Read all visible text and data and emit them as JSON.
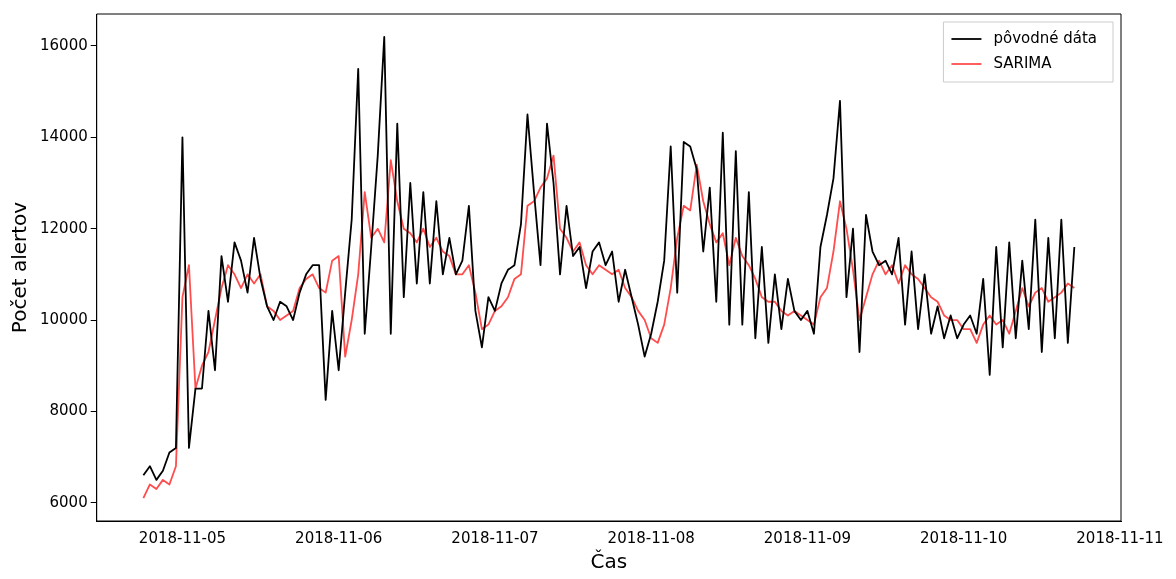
{
  "chart_data": {
    "type": "line",
    "xlabel": "Čas",
    "ylabel": "Počet alertov",
    "legend": "top right",
    "grid": false,
    "marker": "none",
    "line_style": "solid",
    "xlim": [
      "2018-11-04T10:50",
      "2018-11-11T00:10"
    ],
    "xticks": [
      "2018-11-05",
      "2018-11-06",
      "2018-11-07",
      "2018-11-08",
      "2018-11-09",
      "2018-11-10",
      "2018-11-11"
    ],
    "ylim": [
      5600,
      16700
    ],
    "yticks": [
      6000,
      8000,
      10000,
      12000,
      14000,
      16000
    ],
    "x": [
      "2018-11-04T18:00",
      "2018-11-04T19:00",
      "2018-11-04T20:00",
      "2018-11-04T21:00",
      "2018-11-04T22:00",
      "2018-11-04T23:00",
      "2018-11-05T00:00",
      "2018-11-05T01:00",
      "2018-11-05T02:00",
      "2018-11-05T03:00",
      "2018-11-05T04:00",
      "2018-11-05T05:00",
      "2018-11-05T06:00",
      "2018-11-05T07:00",
      "2018-11-05T08:00",
      "2018-11-05T09:00",
      "2018-11-05T10:00",
      "2018-11-05T11:00",
      "2018-11-05T12:00",
      "2018-11-05T13:00",
      "2018-11-05T14:00",
      "2018-11-05T15:00",
      "2018-11-05T16:00",
      "2018-11-05T17:00",
      "2018-11-05T18:00",
      "2018-11-05T19:00",
      "2018-11-05T20:00",
      "2018-11-05T21:00",
      "2018-11-05T22:00",
      "2018-11-05T23:00",
      "2018-11-06T00:00",
      "2018-11-06T01:00",
      "2018-11-06T02:00",
      "2018-11-06T03:00",
      "2018-11-06T04:00",
      "2018-11-06T05:00",
      "2018-11-06T06:00",
      "2018-11-06T07:00",
      "2018-11-06T08:00",
      "2018-11-06T09:00",
      "2018-11-06T10:00",
      "2018-11-06T11:00",
      "2018-11-06T12:00",
      "2018-11-06T13:00",
      "2018-11-06T14:00",
      "2018-11-06T15:00",
      "2018-11-06T16:00",
      "2018-11-06T17:00",
      "2018-11-06T18:00",
      "2018-11-06T19:00",
      "2018-11-06T20:00",
      "2018-11-06T21:00",
      "2018-11-06T22:00",
      "2018-11-06T23:00",
      "2018-11-07T00:00",
      "2018-11-07T01:00",
      "2018-11-07T02:00",
      "2018-11-07T03:00",
      "2018-11-07T04:00",
      "2018-11-07T05:00",
      "2018-11-07T06:00",
      "2018-11-07T07:00",
      "2018-11-07T08:00",
      "2018-11-07T09:00",
      "2018-11-07T10:00",
      "2018-11-07T11:00",
      "2018-11-07T12:00",
      "2018-11-07T13:00",
      "2018-11-07T14:00",
      "2018-11-07T15:00",
      "2018-11-07T16:00",
      "2018-11-07T17:00",
      "2018-11-07T18:00",
      "2018-11-07T19:00",
      "2018-11-07T20:00",
      "2018-11-07T21:00",
      "2018-11-07T22:00",
      "2018-11-07T23:00",
      "2018-11-08T00:00",
      "2018-11-08T01:00",
      "2018-11-08T02:00",
      "2018-11-08T03:00",
      "2018-11-08T04:00",
      "2018-11-08T05:00",
      "2018-11-08T06:00",
      "2018-11-08T07:00",
      "2018-11-08T08:00",
      "2018-11-08T09:00",
      "2018-11-08T10:00",
      "2018-11-08T11:00",
      "2018-11-08T12:00",
      "2018-11-08T13:00",
      "2018-11-08T14:00",
      "2018-11-08T15:00",
      "2018-11-08T16:00",
      "2018-11-08T17:00",
      "2018-11-08T18:00",
      "2018-11-08T19:00",
      "2018-11-08T20:00",
      "2018-11-08T21:00",
      "2018-11-08T22:00",
      "2018-11-08T23:00",
      "2018-11-09T00:00",
      "2018-11-09T01:00",
      "2018-11-09T02:00",
      "2018-11-09T03:00",
      "2018-11-09T04:00",
      "2018-11-09T05:00",
      "2018-11-09T06:00",
      "2018-11-09T07:00",
      "2018-11-09T08:00",
      "2018-11-09T09:00",
      "2018-11-09T10:00",
      "2018-11-09T11:00",
      "2018-11-09T12:00",
      "2018-11-09T13:00",
      "2018-11-09T14:00",
      "2018-11-09T15:00",
      "2018-11-09T16:00",
      "2018-11-09T17:00",
      "2018-11-09T18:00",
      "2018-11-09T19:00",
      "2018-11-09T20:00",
      "2018-11-09T21:00",
      "2018-11-09T22:00",
      "2018-11-09T23:00",
      "2018-11-10T00:00",
      "2018-11-10T01:00",
      "2018-11-10T02:00",
      "2018-11-10T03:00",
      "2018-11-10T04:00",
      "2018-11-10T05:00",
      "2018-11-10T06:00",
      "2018-11-10T07:00",
      "2018-11-10T08:00",
      "2018-11-10T09:00",
      "2018-11-10T10:00",
      "2018-11-10T11:00",
      "2018-11-10T12:00",
      "2018-11-10T13:00",
      "2018-11-10T14:00",
      "2018-11-10T15:00",
      "2018-11-10T16:00",
      "2018-11-10T17:00"
    ],
    "series": [
      {
        "name": "pôvodné dáta",
        "color": "#000000",
        "values": [
          6600,
          6800,
          6500,
          6700,
          7100,
          7200,
          14000,
          7200,
          8500,
          8500,
          10200,
          8900,
          11400,
          10400,
          11700,
          11300,
          10600,
          11800,
          10900,
          10300,
          10000,
          10400,
          10300,
          10000,
          10600,
          11000,
          11200,
          11200,
          8250,
          10200,
          8900,
          10600,
          12200,
          15500,
          9700,
          11600,
          13600,
          16200,
          9700,
          14300,
          10500,
          13000,
          10800,
          12800,
          10800,
          12600,
          11000,
          11800,
          11000,
          11300,
          12500,
          10200,
          9400,
          10500,
          10200,
          10800,
          11100,
          11200,
          12100,
          14500,
          12800,
          11200,
          14300,
          13000,
          11000,
          12500,
          11400,
          11600,
          10700,
          11500,
          11700,
          11200,
          11500,
          10400,
          11100,
          10500,
          9900,
          9200,
          9700,
          10400,
          11300,
          13800,
          10600,
          13900,
          13800,
          13300,
          11500,
          12900,
          10400,
          14100,
          9900,
          13700,
          9900,
          12800,
          9600,
          11600,
          9500,
          11000,
          9800,
          10900,
          10200,
          10000,
          10200,
          9700,
          11600,
          12300,
          13100,
          14800,
          10500,
          12000,
          9300,
          12300,
          11500,
          11200,
          11300,
          11000,
          11800,
          9900,
          11500,
          9800,
          11000,
          9700,
          10300,
          9600,
          10100,
          9600,
          9900,
          10100,
          9700,
          10900,
          8800,
          11600,
          9400,
          11700,
          9600,
          11300,
          9800,
          12200,
          9300,
          11800,
          9600,
          12200,
          9500,
          11600
        ]
      },
      {
        "name": "SARIMA",
        "color": "#ff4c4c",
        "values": [
          6100,
          6400,
          6300,
          6500,
          6400,
          6800,
          10500,
          11200,
          8500,
          9000,
          9300,
          10000,
          10700,
          11200,
          11000,
          10700,
          11000,
          10800,
          11000,
          10300,
          10200,
          10000,
          10100,
          10200,
          10700,
          10900,
          11000,
          10700,
          10600,
          11300,
          11400,
          9200,
          10000,
          11000,
          12800,
          11800,
          12000,
          11700,
          13500,
          12600,
          12000,
          11900,
          11700,
          12000,
          11600,
          11800,
          11500,
          11400,
          11000,
          11000,
          11200,
          10600,
          9800,
          9900,
          10200,
          10300,
          10500,
          10900,
          11000,
          12500,
          12600,
          12900,
          13100,
          13600,
          12000,
          11800,
          11500,
          11700,
          11200,
          11000,
          11200,
          11100,
          11000,
          11100,
          10700,
          10500,
          10200,
          10000,
          9600,
          9500,
          9900,
          10700,
          11800,
          12500,
          12400,
          13400,
          12600,
          12100,
          11700,
          11900,
          11200,
          11800,
          11400,
          11200,
          10900,
          10500,
          10400,
          10400,
          10200,
          10100,
          10200,
          10100,
          10000,
          9900,
          10500,
          10700,
          11500,
          12600,
          12000,
          11100,
          10000,
          10500,
          11000,
          11300,
          11000,
          11200,
          10800,
          11200,
          11000,
          10900,
          10700,
          10500,
          10400,
          10100,
          10000,
          10000,
          9800,
          9800,
          9500,
          9900,
          10100,
          9900,
          10000,
          9700,
          10200,
          10700,
          10300,
          10600,
          10700,
          10400,
          10500,
          10600,
          10800,
          10700
        ]
      }
    ]
  }
}
